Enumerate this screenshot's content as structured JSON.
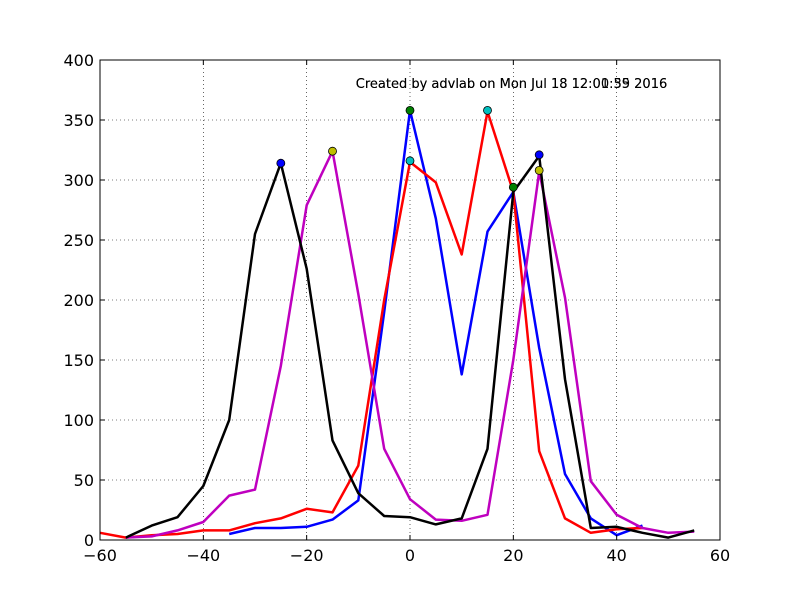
{
  "chart_data": {
    "type": "line",
    "title": "",
    "xlabel": "",
    "ylabel": "",
    "xlim": [
      -60,
      60
    ],
    "ylim": [
      0,
      400
    ],
    "xticks": [
      -60,
      -40,
      -20,
      0,
      20,
      40,
      60
    ],
    "yticks": [
      0,
      50,
      100,
      150,
      200,
      250,
      300,
      350,
      400
    ],
    "grid": true,
    "annotations": [
      {
        "text": "Created by advlab on Mon Jul 18 12:00:35 2016",
        "x": -10.5,
        "y": 380
      },
      {
        "text": "Created by advlab on Mon Jul 18 12:01:59 2016",
        "x": -10.5,
        "y": 380
      }
    ],
    "series": [
      {
        "color": "#0000ff",
        "x": [
          -35,
          -30,
          -25,
          -20,
          -15,
          -10,
          -5,
          0,
          5,
          10,
          15,
          20,
          25,
          30,
          35,
          40,
          45
        ],
        "values": [
          5,
          10,
          10,
          11,
          17,
          33,
          190,
          358,
          268,
          138,
          257,
          290,
          160,
          55,
          18,
          4,
          12
        ]
      },
      {
        "color": "#ff0000",
        "x": [
          -60,
          -55,
          -50,
          -45,
          -40,
          -35,
          -30,
          -25,
          -20,
          -15,
          -10,
          -5,
          0,
          5,
          10,
          15,
          20,
          25,
          30,
          35,
          40,
          45
        ],
        "values": [
          6,
          2,
          4,
          5,
          8,
          8,
          14,
          18,
          26,
          23,
          62,
          200,
          315,
          298,
          238,
          357,
          290,
          74,
          18,
          6,
          9,
          10
        ]
      },
      {
        "color": "#bf00bf",
        "x": [
          -55,
          -50,
          -45,
          -40,
          -35,
          -30,
          -25,
          -20,
          -15,
          -10,
          -5,
          0,
          5,
          10,
          15,
          20,
          25,
          30,
          35,
          40,
          45,
          50,
          55
        ],
        "values": [
          2,
          3,
          8,
          15,
          37,
          42,
          145,
          279,
          324,
          205,
          76,
          34,
          17,
          16,
          21,
          150,
          307,
          202,
          49,
          21,
          10,
          6,
          7
        ]
      },
      {
        "color": "#000000",
        "x": [
          -55,
          -50,
          -45,
          -40,
          -35,
          -30,
          -25,
          -20,
          -15,
          -10,
          -5,
          0,
          5,
          10,
          15,
          20,
          25,
          30,
          35,
          40,
          45,
          50,
          55
        ],
        "values": [
          2,
          12,
          19,
          45,
          100,
          255,
          314,
          226,
          83,
          39,
          20,
          19,
          13,
          18,
          76,
          290,
          320,
          134,
          10,
          11,
          6,
          2,
          8
        ]
      }
    ],
    "markers": [
      {
        "x": -25,
        "y": 314,
        "color": "#0000ff"
      },
      {
        "x": -15,
        "y": 324,
        "color": "#bfbf00"
      },
      {
        "x": 0,
        "y": 358,
        "color": "#008000"
      },
      {
        "x": 0,
        "y": 316,
        "color": "#00bfbf"
      },
      {
        "x": 15,
        "y": 358,
        "color": "#00bfbf"
      },
      {
        "x": 20,
        "y": 294,
        "color": "#008000"
      },
      {
        "x": 25,
        "y": 321,
        "color": "#0000ff"
      },
      {
        "x": 25,
        "y": 308,
        "color": "#bfbf00"
      }
    ]
  }
}
